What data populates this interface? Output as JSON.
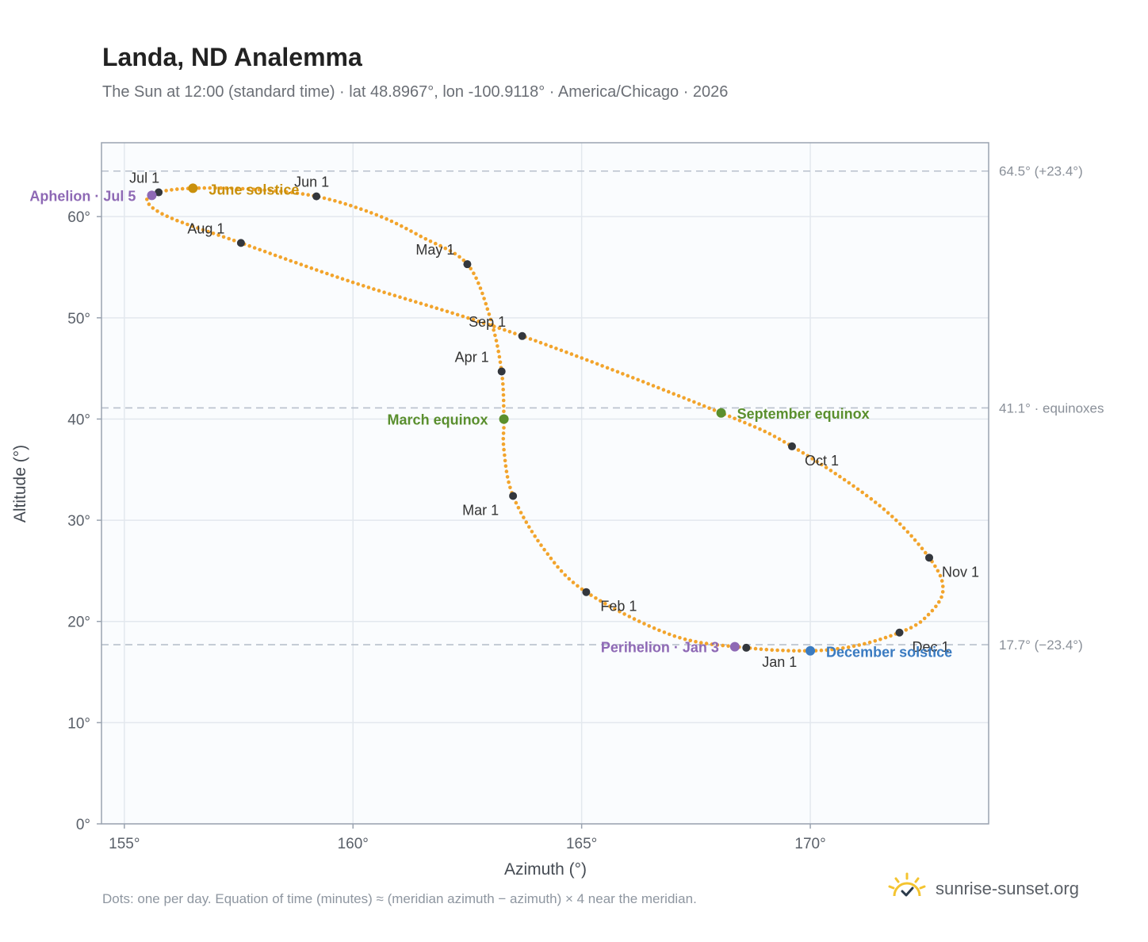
{
  "header": {
    "title": "Landa, ND Analemma",
    "subtitle": "The Sun at 12:00 (standard time) · lat 48.8967°, lon -100.9118° · America/Chicago · 2026"
  },
  "footer": {
    "note": "Dots: one per day. Equation of time (minutes) ≈ (meridian azimuth − azimuth) × 4 near the meridian.",
    "brand": "sunrise-sunset.org",
    "brand_icon": "sun-logo-icon"
  },
  "colors": {
    "curve": "#f2a42c",
    "month_dot": "#33373d",
    "equinox": "#5a8f2e",
    "june_solstice": "#c9900c",
    "december_solstice": "#3a7bc1",
    "apsis": "#8e69b5",
    "ref_line": "#b8c0cc",
    "plot_bg": "#fafcfe",
    "grid": "#e3e8ee",
    "frame": "#9aa3b0"
  },
  "chart_data": {
    "type": "scatter",
    "xlabel": "Azimuth (°)",
    "ylabel": "Altitude (°)",
    "xlim": [
      154.5,
      173.9
    ],
    "ylim": [
      0,
      67.3
    ],
    "x_ticks": [
      {
        "value": 155,
        "label": "155°"
      },
      {
        "value": 160,
        "label": "160°"
      },
      {
        "value": 165,
        "label": "165°"
      },
      {
        "value": 170,
        "label": "170°"
      }
    ],
    "y_ticks": [
      {
        "value": 0,
        "label": "0°"
      },
      {
        "value": 10,
        "label": "10°"
      },
      {
        "value": 20,
        "label": "20°"
      },
      {
        "value": 30,
        "label": "30°"
      },
      {
        "value": 40,
        "label": "40°"
      },
      {
        "value": 50,
        "label": "50°"
      },
      {
        "value": 60,
        "label": "60°"
      }
    ],
    "grid": true,
    "reference_lines": [
      {
        "y": 64.5,
        "label": "64.5° (+23.4°)"
      },
      {
        "y": 41.1,
        "label": "41.1° · equinoxes"
      },
      {
        "y": 17.7,
        "label": "17.7° (−23.4°)"
      }
    ],
    "month_points": [
      {
        "label": "Jan 1",
        "x": 168.6,
        "y": 17.4
      },
      {
        "label": "Feb 1",
        "x": 165.1,
        "y": 22.9
      },
      {
        "label": "Mar 1",
        "x": 163.5,
        "y": 32.4
      },
      {
        "label": "Apr 1",
        "x": 163.25,
        "y": 44.7
      },
      {
        "label": "May 1",
        "x": 162.5,
        "y": 55.3
      },
      {
        "label": "Jun 1",
        "x": 159.2,
        "y": 62.0
      },
      {
        "label": "Jul 1",
        "x": 155.75,
        "y": 62.4
      },
      {
        "label": "Aug 1",
        "x": 157.55,
        "y": 57.4
      },
      {
        "label": "Sep 1",
        "x": 163.7,
        "y": 48.2
      },
      {
        "label": "Oct 1",
        "x": 169.6,
        "y": 37.3
      },
      {
        "label": "Nov 1",
        "x": 172.6,
        "y": 26.3
      },
      {
        "label": "Dec 1",
        "x": 171.95,
        "y": 18.9
      }
    ],
    "events": [
      {
        "label": "March equinox",
        "x": 163.3,
        "y": 40.0,
        "color_key": "equinox"
      },
      {
        "label": "September equinox",
        "x": 168.05,
        "y": 40.6,
        "color_key": "equinox"
      },
      {
        "label": "June solstice",
        "x": 156.5,
        "y": 62.8,
        "color_key": "june_solstice"
      },
      {
        "label": "December solstice",
        "x": 170.0,
        "y": 17.1,
        "color_key": "december_solstice"
      },
      {
        "label": "Aphelion · Jul 5",
        "x": 155.6,
        "y": 62.1,
        "color_key": "apsis"
      },
      {
        "label": "Perihelion · Jan 3",
        "x": 168.35,
        "y": 17.5,
        "color_key": "apsis"
      }
    ],
    "curve_path": [
      [
        170.0,
        17.1
      ],
      [
        168.6,
        17.4
      ],
      [
        167.0,
        18.6
      ],
      [
        165.1,
        22.9
      ],
      [
        164.2,
        27.0
      ],
      [
        163.5,
        32.4
      ],
      [
        163.3,
        37.0
      ],
      [
        163.3,
        40.0
      ],
      [
        163.25,
        44.7
      ],
      [
        163.0,
        50.0
      ],
      [
        162.5,
        55.3
      ],
      [
        161.5,
        58.0
      ],
      [
        160.5,
        60.2
      ],
      [
        159.2,
        62.0
      ],
      [
        157.8,
        62.7
      ],
      [
        156.5,
        62.8
      ],
      [
        155.75,
        62.4
      ],
      [
        155.5,
        61.5
      ],
      [
        156.0,
        59.9
      ],
      [
        157.55,
        57.4
      ],
      [
        160.0,
        53.5
      ],
      [
        163.7,
        48.2
      ],
      [
        168.05,
        40.6
      ],
      [
        169.6,
        37.3
      ],
      [
        171.5,
        31.5
      ],
      [
        172.6,
        26.3
      ],
      [
        172.9,
        23.0
      ],
      [
        172.5,
        20.3
      ],
      [
        171.95,
        18.9
      ],
      [
        171.0,
        17.6
      ],
      [
        170.0,
        17.1
      ]
    ]
  }
}
